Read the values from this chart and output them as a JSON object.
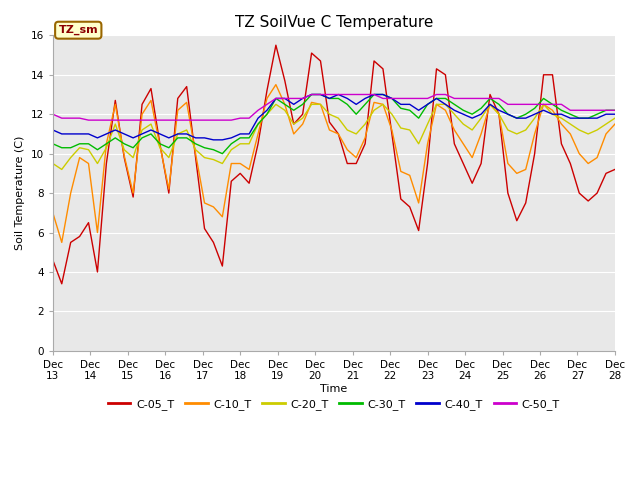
{
  "title": "TZ SoilVue C Temperature",
  "xlabel": "Time",
  "ylabel": "Soil Temperature (C)",
  "ylim": [
    0,
    16
  ],
  "bg_color": "#e8e8e8",
  "fig_color": "#ffffff",
  "legend_label": "TZ_sm",
  "series": {
    "C-05_T": {
      "color": "#cc0000",
      "values": [
        4.6,
        3.4,
        5.5,
        5.8,
        6.5,
        4.0,
        9.5,
        12.7,
        9.8,
        7.8,
        12.5,
        13.3,
        10.5,
        8.0,
        12.8,
        13.4,
        9.8,
        6.2,
        5.5,
        4.3,
        8.6,
        9.0,
        8.5,
        10.5,
        13.2,
        15.5,
        13.7,
        11.5,
        12.0,
        15.1,
        14.7,
        11.6,
        11.0,
        9.5,
        9.5,
        10.5,
        14.7,
        14.3,
        11.0,
        7.7,
        7.3,
        6.1,
        9.5,
        14.3,
        14.0,
        10.5,
        9.5,
        8.5,
        9.5,
        13.0,
        12.0,
        8.0,
        6.6,
        7.5,
        10.0,
        14.0,
        14.0,
        10.5,
        9.5,
        8.0,
        7.6,
        8.0,
        9.0,
        9.2
      ]
    },
    "C-10_T": {
      "color": "#ff8c00",
      "values": [
        7.0,
        5.5,
        8.0,
        9.8,
        9.5,
        6.0,
        10.5,
        12.5,
        9.9,
        8.0,
        12.0,
        12.7,
        10.4,
        8.2,
        12.2,
        12.6,
        10.0,
        7.5,
        7.3,
        6.8,
        9.5,
        9.5,
        9.2,
        11.0,
        12.8,
        13.5,
        12.5,
        11.0,
        11.5,
        12.6,
        12.5,
        11.2,
        11.0,
        10.2,
        9.8,
        10.8,
        12.6,
        12.5,
        11.2,
        9.1,
        8.9,
        7.5,
        10.5,
        12.5,
        12.2,
        11.2,
        10.5,
        9.8,
        11.0,
        12.5,
        12.0,
        9.5,
        9.0,
        9.2,
        11.0,
        12.5,
        12.2,
        11.5,
        11.0,
        10.0,
        9.5,
        9.8,
        11.0,
        11.5
      ]
    },
    "C-20_T": {
      "color": "#cccc00",
      "values": [
        9.5,
        9.2,
        9.8,
        10.3,
        10.2,
        9.5,
        10.3,
        11.5,
        10.2,
        9.8,
        11.2,
        11.5,
        10.3,
        9.8,
        11.0,
        11.2,
        10.2,
        9.8,
        9.7,
        9.5,
        10.2,
        10.5,
        10.5,
        11.5,
        12.0,
        12.5,
        12.2,
        11.5,
        11.8,
        12.5,
        12.5,
        12.0,
        11.8,
        11.2,
        11.0,
        11.5,
        12.2,
        12.5,
        12.0,
        11.3,
        11.2,
        10.5,
        11.5,
        12.5,
        12.5,
        12.0,
        11.5,
        11.2,
        11.8,
        12.5,
        12.0,
        11.2,
        11.0,
        11.2,
        11.8,
        12.5,
        12.0,
        11.8,
        11.5,
        11.2,
        11.0,
        11.2,
        11.5,
        11.8
      ]
    },
    "C-30_T": {
      "color": "#00bb00",
      "values": [
        10.5,
        10.3,
        10.3,
        10.5,
        10.5,
        10.2,
        10.5,
        10.8,
        10.5,
        10.3,
        10.8,
        11.0,
        10.5,
        10.3,
        10.8,
        10.8,
        10.5,
        10.3,
        10.2,
        10.0,
        10.5,
        10.8,
        10.8,
        11.5,
        12.0,
        12.8,
        12.5,
        12.2,
        12.5,
        13.0,
        13.0,
        12.8,
        12.8,
        12.5,
        12.0,
        12.5,
        13.0,
        13.0,
        12.8,
        12.3,
        12.2,
        11.8,
        12.5,
        12.8,
        12.8,
        12.5,
        12.2,
        12.0,
        12.3,
        12.8,
        12.5,
        12.0,
        11.8,
        12.0,
        12.3,
        12.8,
        12.5,
        12.2,
        12.0,
        11.8,
        11.8,
        12.0,
        12.2,
        12.2
      ]
    },
    "C-40_T": {
      "color": "#0000cc",
      "values": [
        11.2,
        11.0,
        11.0,
        11.0,
        11.0,
        10.8,
        11.0,
        11.2,
        11.0,
        10.8,
        11.0,
        11.2,
        11.0,
        10.8,
        11.0,
        11.0,
        10.8,
        10.8,
        10.7,
        10.7,
        10.8,
        11.0,
        11.0,
        11.8,
        12.2,
        12.8,
        12.8,
        12.5,
        12.8,
        13.0,
        13.0,
        12.8,
        13.0,
        12.8,
        12.5,
        12.8,
        13.0,
        13.0,
        12.8,
        12.5,
        12.5,
        12.2,
        12.5,
        12.8,
        12.5,
        12.2,
        12.0,
        11.8,
        12.0,
        12.5,
        12.2,
        12.0,
        11.8,
        11.8,
        12.0,
        12.2,
        12.0,
        12.0,
        11.8,
        11.8,
        11.8,
        11.8,
        12.0,
        12.0
      ]
    },
    "C-50_T": {
      "color": "#cc00cc",
      "values": [
        12.0,
        11.8,
        11.8,
        11.8,
        11.7,
        11.7,
        11.7,
        11.7,
        11.7,
        11.7,
        11.7,
        11.7,
        11.7,
        11.7,
        11.7,
        11.7,
        11.7,
        11.7,
        11.7,
        11.7,
        11.7,
        11.8,
        11.8,
        12.2,
        12.5,
        12.8,
        12.8,
        12.8,
        12.8,
        13.0,
        13.0,
        13.0,
        13.0,
        13.0,
        13.0,
        13.0,
        13.0,
        12.8,
        12.8,
        12.8,
        12.8,
        12.8,
        12.8,
        13.0,
        13.0,
        12.8,
        12.8,
        12.8,
        12.8,
        12.8,
        12.8,
        12.5,
        12.5,
        12.5,
        12.5,
        12.5,
        12.5,
        12.5,
        12.2,
        12.2,
        12.2,
        12.2,
        12.2,
        12.2
      ]
    }
  },
  "xtick_labels": [
    "Dec 13",
    "Dec 14",
    "Dec 15",
    "Dec 16",
    "Dec 17",
    "Dec 18",
    "Dec 19",
    "Dec 20",
    "Dec 21",
    "Dec 22",
    "Dec 23",
    "Dec 24",
    "Dec 25",
    "Dec 26",
    "Dec 27",
    "Dec 28"
  ],
  "ytick_values": [
    0,
    2,
    4,
    6,
    8,
    10,
    12,
    14,
    16
  ],
  "title_fontsize": 11,
  "axis_label_fontsize": 8,
  "tick_fontsize": 7.5
}
